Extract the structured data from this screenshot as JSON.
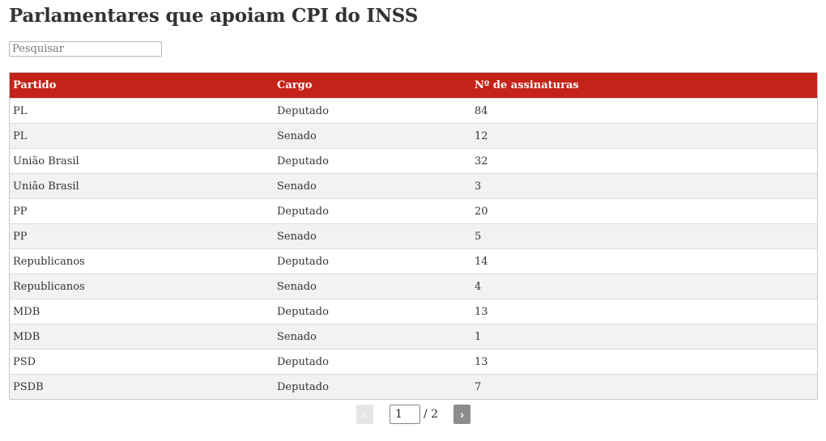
{
  "title": "Parlamentares que apoiam CPI do INSS",
  "search": {
    "placeholder": "Pesquisar",
    "value": ""
  },
  "table": {
    "header_color": "#c5221a",
    "columns": [
      "Partido",
      "Cargo",
      "Nº de assinaturas"
    ],
    "rows": [
      [
        "PL",
        "Deputado",
        "84"
      ],
      [
        "PL",
        "Senado",
        "12"
      ],
      [
        "União Brasil",
        "Deputado",
        "32"
      ],
      [
        "União Brasil",
        "Senado",
        "3"
      ],
      [
        "PP",
        "Deputado",
        "20"
      ],
      [
        "PP",
        "Senado",
        "5"
      ],
      [
        "Republicanos",
        "Deputado",
        "14"
      ],
      [
        "Republicanos",
        "Senado",
        "4"
      ],
      [
        "MDB",
        "Deputado",
        "13"
      ],
      [
        "MDB",
        "Senado",
        "1"
      ],
      [
        "PSD",
        "Deputado",
        "13"
      ],
      [
        "PSDB",
        "Deputado",
        "7"
      ]
    ]
  },
  "pagination": {
    "prev_icon": "‹",
    "next_icon": "›",
    "current_page": "1",
    "total_label": "/ 2"
  }
}
